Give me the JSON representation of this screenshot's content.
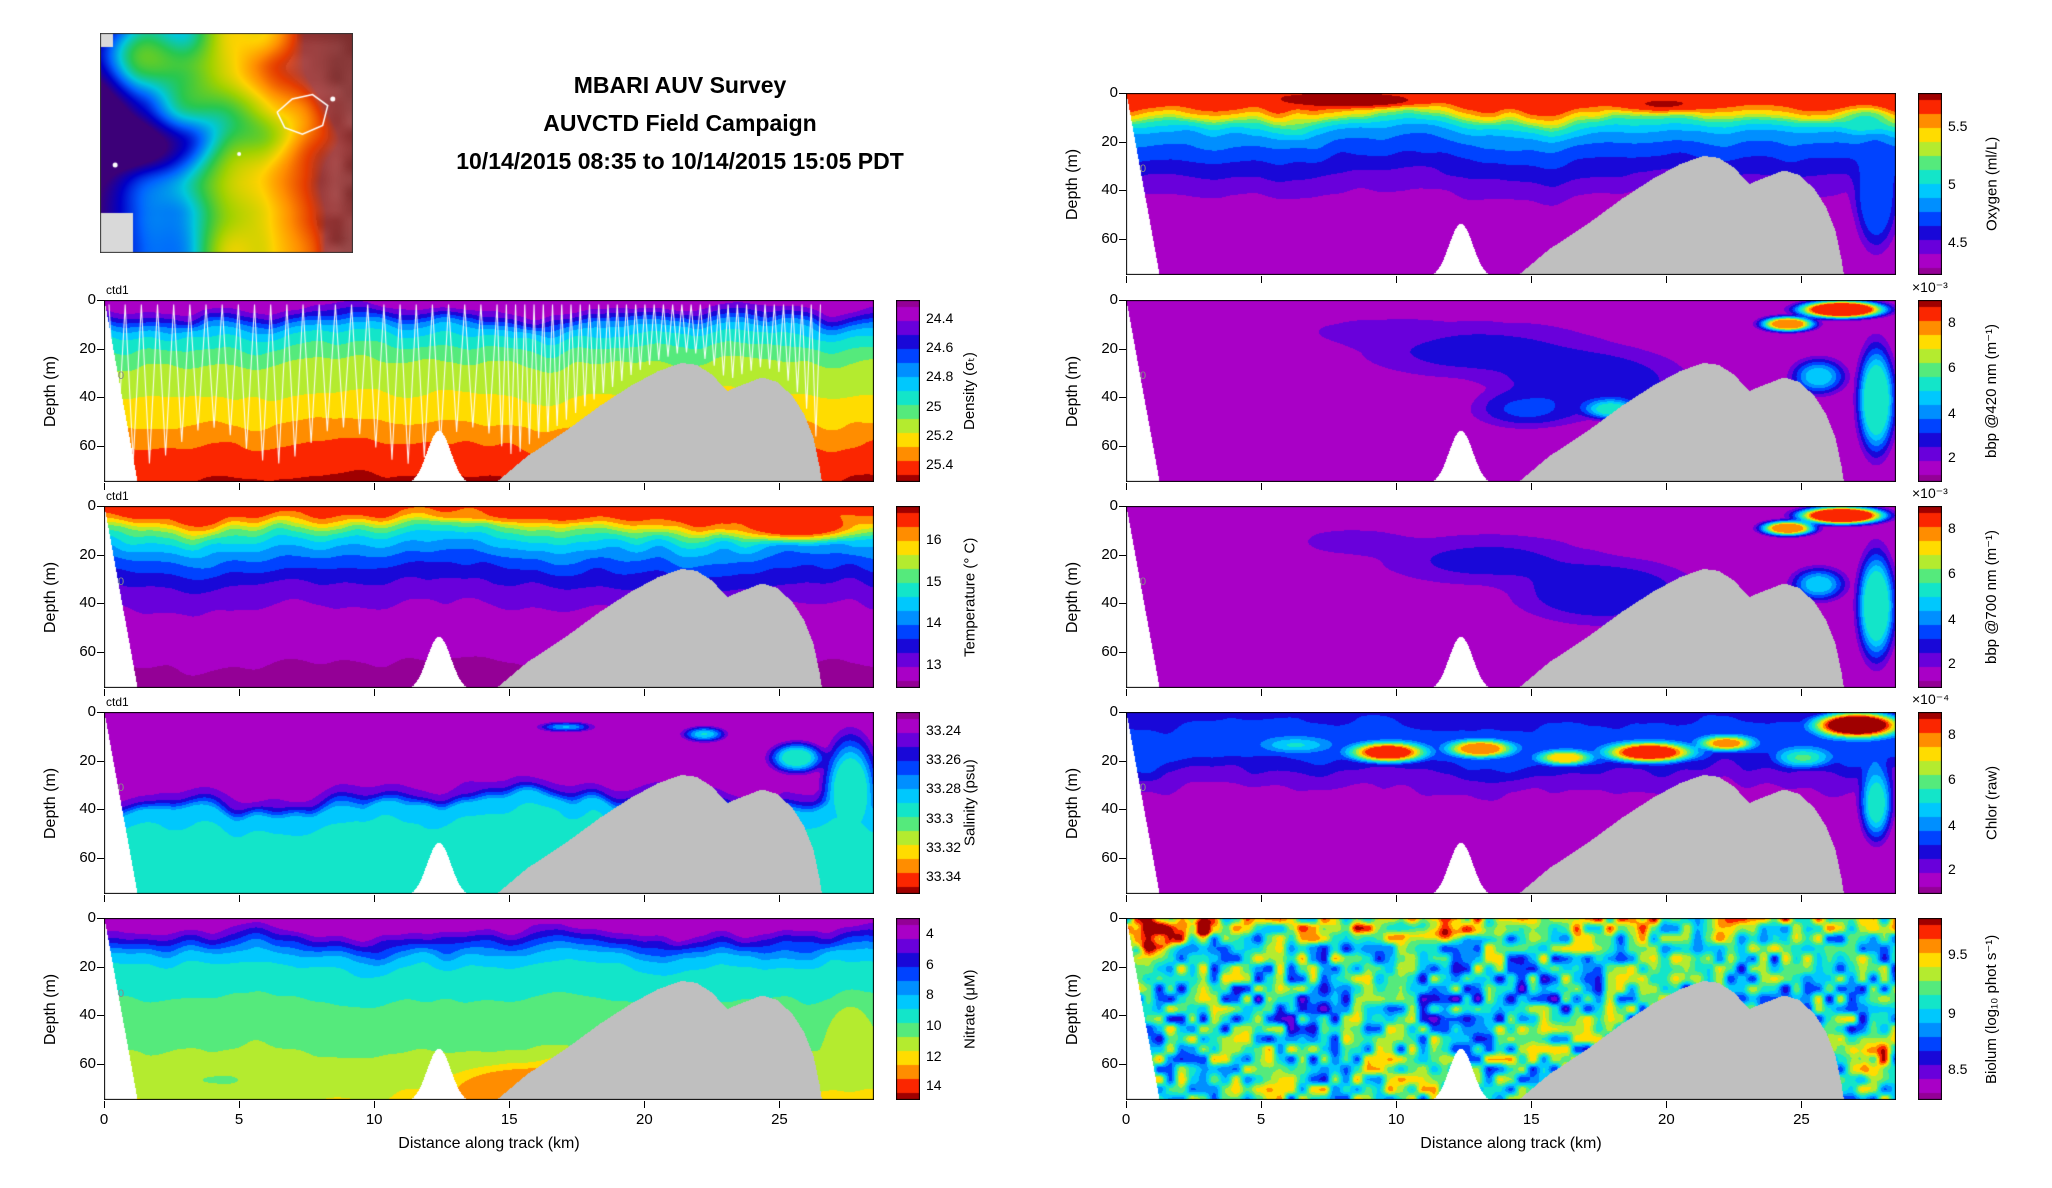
{
  "title": {
    "line1": "MBARI AUV Survey",
    "line2": "AUVCTD Field Campaign",
    "line3": "10/14/2015 08:35 to 10/14/2015 15:05 PDT"
  },
  "map_inset": {
    "type": "bathymetry-map",
    "track_color": "#ffffff",
    "land_color": "#8c3c3c"
  },
  "shared_axes": {
    "xlabel": "Distance along track (km)",
    "ylabel": "Depth (m)",
    "xticks": [
      0,
      5,
      10,
      15,
      20,
      25
    ],
    "yticks": [
      0,
      20,
      40,
      60
    ],
    "xmax_km": 28.5,
    "ymax_m": 75
  },
  "colors": {
    "seafloor_gray": "#bfbfbf",
    "colormap": [
      [
        0,
        "#940096"
      ],
      [
        0.08,
        "#aa00c8"
      ],
      [
        0.15,
        "#6e00dc"
      ],
      [
        0.22,
        "#1e00d2"
      ],
      [
        0.3,
        "#003cff"
      ],
      [
        0.38,
        "#008cff"
      ],
      [
        0.46,
        "#00c8ff"
      ],
      [
        0.54,
        "#14e6c8"
      ],
      [
        0.62,
        "#5aeb78"
      ],
      [
        0.7,
        "#beeb28"
      ],
      [
        0.76,
        "#ffe600"
      ],
      [
        0.84,
        "#ff9600"
      ],
      [
        0.92,
        "#ff2800"
      ],
      [
        1,
        "#a00000"
      ]
    ]
  },
  "chart_data": [
    {
      "id": "density",
      "variable": "Density",
      "column": "left",
      "grid_row": 1,
      "type": "heatmap",
      "annotation": "ctd1",
      "marker": "0",
      "colorbar": {
        "label": "Density (σₜ)",
        "ticks": [
          "24.4",
          "24.6",
          "24.8",
          "25",
          "25.2",
          "25.4"
        ],
        "tick_pos": [
          0.1,
          0.26,
          0.42,
          0.58,
          0.74,
          0.9
        ],
        "increases_down": true,
        "exponent": null,
        "range_est": [
          24.3,
          25.5
        ]
      },
      "render": {
        "seed": 11,
        "wiggle": 0.045,
        "noise": 0.02,
        "white_track": true,
        "speckle": null,
        "profile": [
          [
            0,
            0.04
          ],
          [
            0.04,
            0.08
          ],
          [
            0.09,
            0.22
          ],
          [
            0.14,
            0.4
          ],
          [
            0.2,
            0.52
          ],
          [
            0.28,
            0.6
          ],
          [
            0.38,
            0.68
          ],
          [
            0.52,
            0.73
          ],
          [
            0.64,
            0.78
          ],
          [
            0.75,
            0.86
          ],
          [
            0.88,
            0.93
          ],
          [
            1,
            0.97
          ]
        ],
        "blobs": []
      }
    },
    {
      "id": "temperature",
      "variable": "Temperature",
      "column": "left",
      "grid_row": 2,
      "type": "heatmap",
      "annotation": "ctd1",
      "marker": "0",
      "colorbar": {
        "label": "Temperature (° C)",
        "ticks": [
          "16",
          "15",
          "14",
          "13"
        ],
        "tick_pos": [
          0.18,
          0.41,
          0.64,
          0.87
        ],
        "increases_down": false,
        "exponent": null,
        "range_est": [
          12.5,
          16.5
        ]
      },
      "render": {
        "seed": 22,
        "wiggle": 0.05,
        "noise": 0.02,
        "white_track": false,
        "speckle": null,
        "profile": [
          [
            0,
            0.95
          ],
          [
            0.05,
            0.9
          ],
          [
            0.09,
            0.78
          ],
          [
            0.13,
            0.62
          ],
          [
            0.18,
            0.5
          ],
          [
            0.24,
            0.4
          ],
          [
            0.32,
            0.3
          ],
          [
            0.42,
            0.2
          ],
          [
            0.54,
            0.12
          ],
          [
            0.68,
            0.07
          ],
          [
            0.85,
            0.04
          ],
          [
            1,
            0.03
          ]
        ],
        "blobs": [
          [
            0.9,
            0.1,
            0.13,
            0.13,
            0.92,
            0.85
          ],
          [
            0.55,
            0.05,
            0.2,
            0.05,
            0.9,
            0.5
          ]
        ]
      }
    },
    {
      "id": "salinity",
      "variable": "Salinity",
      "column": "left",
      "grid_row": 3,
      "type": "heatmap",
      "annotation": "ctd1",
      "marker": "0",
      "colorbar": {
        "label": "Salinity (psu)",
        "ticks": [
          "33.24",
          "33.26",
          "33.28",
          "33.3",
          "33.32",
          "33.34"
        ],
        "tick_pos": [
          0.1,
          0.26,
          0.42,
          0.58,
          0.74,
          0.9
        ],
        "increases_down": true,
        "exponent": null,
        "range_est": [
          33.23,
          33.35
        ]
      },
      "render": {
        "seed": 33,
        "wiggle": 0.09,
        "noise": 0.035,
        "white_track": false,
        "speckle": null,
        "profile": [
          [
            0,
            0.04
          ],
          [
            0.38,
            0.05
          ],
          [
            0.46,
            0.2
          ],
          [
            0.52,
            0.46
          ],
          [
            0.6,
            0.5
          ],
          [
            1,
            0.5
          ]
        ],
        "blobs": [
          [
            0.97,
            0.45,
            0.05,
            0.45,
            0.5,
            0.9
          ],
          [
            0.9,
            0.25,
            0.05,
            0.12,
            0.5,
            0.8
          ],
          [
            0.78,
            0.12,
            0.04,
            0.06,
            0.5,
            0.6
          ],
          [
            0.6,
            0.08,
            0.05,
            0.04,
            0.5,
            0.5
          ]
        ]
      }
    },
    {
      "id": "nitrate",
      "variable": "Nitrate",
      "column": "left",
      "grid_row": 4,
      "type": "heatmap",
      "annotation": null,
      "marker": "0",
      "colorbar": {
        "label": "Nitrate (μM)",
        "ticks": [
          "4",
          "6",
          "8",
          "10",
          "12",
          "14"
        ],
        "tick_pos": [
          0.08,
          0.25,
          0.42,
          0.59,
          0.76,
          0.92
        ],
        "increases_down": true,
        "exponent": null,
        "range_est": [
          3,
          15
        ]
      },
      "render": {
        "seed": 44,
        "wiggle": 0.05,
        "noise": 0.025,
        "white_track": false,
        "speckle": null,
        "profile": [
          [
            0,
            0.05
          ],
          [
            0.07,
            0.1
          ],
          [
            0.13,
            0.25
          ],
          [
            0.2,
            0.42
          ],
          [
            0.28,
            0.52
          ],
          [
            0.42,
            0.57
          ],
          [
            0.58,
            0.61
          ],
          [
            0.72,
            0.65
          ],
          [
            0.85,
            0.7
          ],
          [
            1,
            0.74
          ]
        ],
        "blobs": [
          [
            0.56,
            0.95,
            0.16,
            0.2,
            0.88,
            0.9
          ],
          [
            0.64,
            0.82,
            0.1,
            0.12,
            0.8,
            0.7
          ],
          [
            0.97,
            0.72,
            0.045,
            0.35,
            0.72,
            0.85
          ],
          [
            0.15,
            0.9,
            0.2,
            0.15,
            0.62,
            0.4
          ]
        ]
      }
    },
    {
      "id": "oxygen",
      "variable": "Oxygen",
      "column": "right",
      "grid_row": 0,
      "type": "heatmap",
      "annotation": null,
      "marker": "0",
      "colorbar": {
        "label": "Oxygen (ml/L)",
        "ticks": [
          "5.5",
          "5",
          "4.5"
        ],
        "tick_pos": [
          0.18,
          0.5,
          0.82
        ],
        "increases_down": false,
        "exponent": null,
        "range_est": [
          4.2,
          5.8
        ]
      },
      "render": {
        "seed": 55,
        "wiggle": 0.05,
        "noise": 0.02,
        "white_track": false,
        "speckle": null,
        "profile": [
          [
            0,
            0.95
          ],
          [
            0.07,
            0.9
          ],
          [
            0.12,
            0.74
          ],
          [
            0.16,
            0.55
          ],
          [
            0.22,
            0.42
          ],
          [
            0.3,
            0.32
          ],
          [
            0.42,
            0.22
          ],
          [
            0.55,
            0.12
          ],
          [
            0.7,
            0.06
          ],
          [
            0.88,
            0.04
          ],
          [
            1,
            0.04
          ]
        ],
        "blobs": [
          [
            0.3,
            0.04,
            0.15,
            0.06,
            1,
            0.7
          ],
          [
            0.7,
            0.06,
            0.1,
            0.07,
            0.97,
            0.6
          ],
          [
            0.975,
            0.55,
            0.04,
            0.45,
            0.3,
            0.95
          ],
          [
            0.96,
            0.15,
            0.05,
            0.1,
            0.55,
            0.6
          ]
        ]
      }
    },
    {
      "id": "bbp420",
      "variable": "bbp @420 nm",
      "column": "right",
      "grid_row": 1,
      "type": "heatmap",
      "annotation": null,
      "marker": "0",
      "colorbar": {
        "label": "bbp @420 nm (m⁻¹)",
        "ticks": [
          "8",
          "6",
          "4",
          "2"
        ],
        "tick_pos": [
          0.12,
          0.37,
          0.62,
          0.86
        ],
        "increases_down": false,
        "exponent": "×10⁻³",
        "range_est": [
          0.001,
          0.009
        ]
      },
      "render": {
        "seed": 66,
        "wiggle": 0.03,
        "noise": 0.05,
        "white_track": false,
        "speckle": null,
        "profile": [
          [
            0,
            0.1
          ],
          [
            0.25,
            0.07
          ],
          [
            0.6,
            0.06
          ],
          [
            1,
            0.07
          ]
        ],
        "blobs": [
          [
            0.46,
            0.28,
            0.22,
            0.22,
            0.22,
            0.7
          ],
          [
            0.6,
            0.45,
            0.18,
            0.28,
            0.24,
            0.8
          ],
          [
            0.33,
            0.18,
            0.13,
            0.12,
            0.18,
            0.5
          ],
          [
            0.52,
            0.6,
            0.1,
            0.15,
            0.3,
            0.6
          ],
          [
            0.93,
            0.05,
            0.08,
            0.07,
            0.95,
            0.95
          ],
          [
            0.86,
            0.13,
            0.05,
            0.06,
            0.85,
            0.8
          ],
          [
            0.68,
            0.72,
            0.07,
            0.12,
            0.72,
            0.85
          ],
          [
            0.63,
            0.6,
            0.05,
            0.08,
            0.55,
            0.7
          ],
          [
            0.74,
            0.52,
            0.045,
            0.09,
            0.75,
            0.7
          ],
          [
            0.975,
            0.55,
            0.035,
            0.42,
            0.55,
            0.85
          ],
          [
            0.9,
            0.42,
            0.05,
            0.14,
            0.45,
            0.7
          ],
          [
            0.2,
            0.5,
            0.1,
            0.2,
            0.1,
            0.4
          ]
        ]
      }
    },
    {
      "id": "bbp700",
      "variable": "bbp @700 nm",
      "column": "right",
      "grid_row": 2,
      "type": "heatmap",
      "annotation": null,
      "marker": "0",
      "colorbar": {
        "label": "bbp @700 nm (m⁻¹)",
        "ticks": [
          "8",
          "6",
          "4",
          "2"
        ],
        "tick_pos": [
          0.12,
          0.37,
          0.62,
          0.86
        ],
        "increases_down": false,
        "exponent": "×10⁻³",
        "range_est": [
          0.001,
          0.009
        ]
      },
      "render": {
        "seed": 77,
        "wiggle": 0.03,
        "noise": 0.05,
        "white_track": false,
        "speckle": null,
        "profile": [
          [
            0,
            0.1
          ],
          [
            0.25,
            0.07
          ],
          [
            0.6,
            0.06
          ],
          [
            1,
            0.07
          ]
        ],
        "blobs": [
          [
            0.47,
            0.3,
            0.2,
            0.2,
            0.22,
            0.65
          ],
          [
            0.62,
            0.47,
            0.17,
            0.26,
            0.24,
            0.8
          ],
          [
            0.3,
            0.2,
            0.12,
            0.12,
            0.17,
            0.5
          ],
          [
            0.93,
            0.05,
            0.08,
            0.07,
            0.96,
            0.95
          ],
          [
            0.86,
            0.12,
            0.05,
            0.06,
            0.85,
            0.8
          ],
          [
            0.68,
            0.73,
            0.07,
            0.12,
            0.74,
            0.85
          ],
          [
            0.74,
            0.53,
            0.05,
            0.09,
            0.78,
            0.7
          ],
          [
            0.975,
            0.55,
            0.035,
            0.42,
            0.55,
            0.85
          ],
          [
            0.9,
            0.43,
            0.05,
            0.13,
            0.45,
            0.7
          ]
        ]
      }
    },
    {
      "id": "chlor",
      "variable": "Chlorophyll",
      "column": "right",
      "grid_row": 3,
      "type": "heatmap",
      "annotation": null,
      "marker": "0",
      "colorbar": {
        "label": "Chlor (raw)",
        "ticks": [
          "8",
          "6",
          "4",
          "2"
        ],
        "tick_pos": [
          0.12,
          0.37,
          0.62,
          0.86
        ],
        "increases_down": false,
        "exponent": "×10⁻⁴",
        "range_est": [
          0.0001,
          0.0009
        ]
      },
      "render": {
        "seed": 88,
        "wiggle": 0.05,
        "noise": 0.03,
        "white_track": false,
        "speckle": null,
        "profile": [
          [
            0,
            0.2
          ],
          [
            0.06,
            0.26
          ],
          [
            0.14,
            0.33
          ],
          [
            0.24,
            0.3
          ],
          [
            0.34,
            0.18
          ],
          [
            0.46,
            0.09
          ],
          [
            0.6,
            0.05
          ],
          [
            1,
            0.05
          ]
        ],
        "blobs": [
          [
            0.34,
            0.22,
            0.07,
            0.08,
            0.9,
            0.85
          ],
          [
            0.46,
            0.2,
            0.06,
            0.07,
            0.85,
            0.8
          ],
          [
            0.57,
            0.25,
            0.05,
            0.06,
            0.8,
            0.7
          ],
          [
            0.68,
            0.22,
            0.08,
            0.08,
            0.92,
            0.85
          ],
          [
            0.78,
            0.17,
            0.05,
            0.06,
            0.86,
            0.7
          ],
          [
            0.95,
            0.07,
            0.08,
            0.1,
            0.98,
            0.95
          ],
          [
            0.88,
            0.25,
            0.05,
            0.08,
            0.6,
            0.6
          ],
          [
            0.975,
            0.5,
            0.03,
            0.3,
            0.55,
            0.7
          ],
          [
            0.22,
            0.18,
            0.06,
            0.06,
            0.55,
            0.5
          ]
        ]
      }
    },
    {
      "id": "biolum",
      "variable": "Bioluminescence",
      "column": "right",
      "grid_row": 4,
      "type": "heatmap",
      "annotation": null,
      "marker": null,
      "colorbar": {
        "label": "Biolum (log₁₀ phot s⁻¹)",
        "ticks": [
          "9.5",
          "9",
          "8.5"
        ],
        "tick_pos": [
          0.2,
          0.52,
          0.83
        ],
        "increases_down": false,
        "exponent": null,
        "range_est": [
          8.2,
          9.8
        ]
      },
      "render": {
        "seed": 99,
        "wiggle": 0.03,
        "noise": 0.02,
        "white_track": false,
        "speckle": [
          0.3,
          70,
          18
        ],
        "profile": [
          [
            0,
            0.72
          ],
          [
            0.05,
            0.63
          ],
          [
            0.12,
            0.55
          ],
          [
            0.35,
            0.5
          ],
          [
            0.65,
            0.51
          ],
          [
            1,
            0.55
          ]
        ],
        "blobs": [
          [
            0.035,
            0.1,
            0.05,
            0.14,
            0.97,
            0.95
          ],
          [
            0.1,
            0.05,
            0.05,
            0.07,
            0.92,
            0.8
          ],
          [
            0.42,
            0.07,
            0.12,
            0.06,
            0.85,
            0.55
          ],
          [
            0.28,
            0.05,
            0.08,
            0.05,
            0.8,
            0.5
          ],
          [
            0.6,
            0.06,
            0.08,
            0.05,
            0.75,
            0.45
          ],
          [
            0.45,
            0.45,
            0.22,
            0.25,
            0.33,
            0.4
          ],
          [
            0.22,
            0.5,
            0.12,
            0.22,
            0.35,
            0.35
          ],
          [
            0.97,
            0.8,
            0.035,
            0.18,
            0.85,
            0.7
          ],
          [
            0.75,
            0.35,
            0.1,
            0.15,
            0.4,
            0.3
          ]
        ]
      }
    }
  ]
}
